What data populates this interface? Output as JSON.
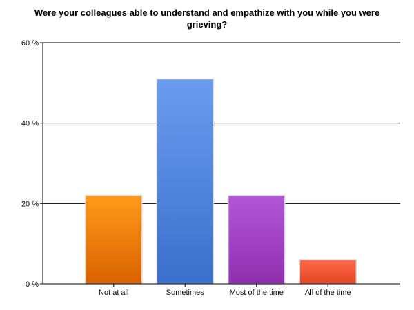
{
  "chart_data": {
    "type": "bar",
    "title": "Were your colleagues able to understand and empathize with you while you were grieving?",
    "xlabel": "",
    "ylabel": "",
    "categories": [
      "Not at all",
      "Sometimes",
      "Most of the time",
      "All of the time"
    ],
    "values": [
      22,
      51,
      22,
      6
    ],
    "ylim": [
      0,
      60
    ],
    "yticks": [
      0,
      20,
      40,
      60
    ],
    "ytick_labels": [
      "0 %",
      "20 %",
      "40 %",
      "60 %"
    ],
    "grid": true,
    "legend": "none",
    "colors": [
      {
        "top": "#ff9a1a",
        "bottom": "#d96200"
      },
      {
        "top": "#6a9cee",
        "bottom": "#3a6fcc"
      },
      {
        "top": "#b357d6",
        "bottom": "#8e2fae"
      },
      {
        "top": "#ff6a4a",
        "bottom": "#e24522"
      }
    ]
  }
}
